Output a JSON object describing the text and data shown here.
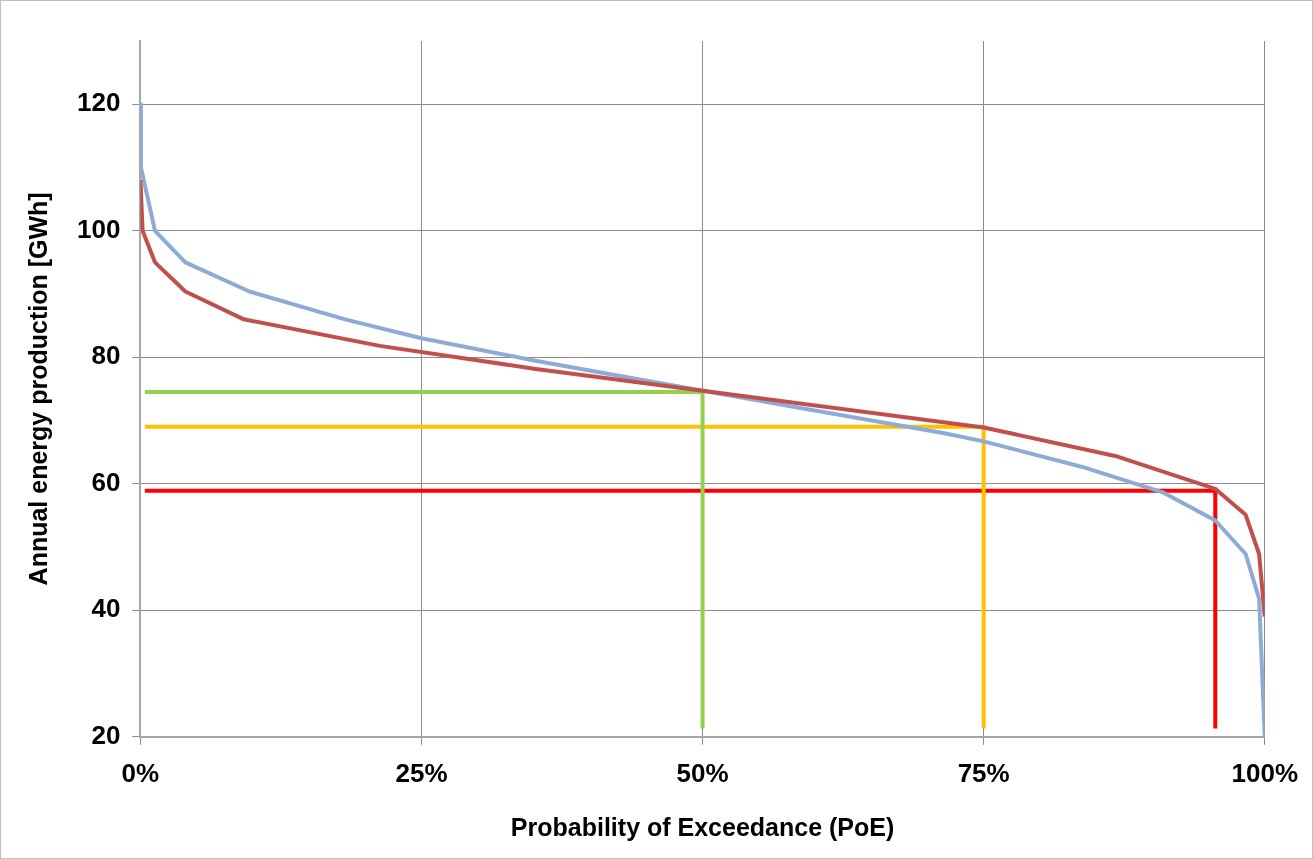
{
  "chart_data": {
    "type": "line",
    "xlabel": "Probability of Exceedance (PoE)",
    "ylabel": "Annual energy production [GWh]",
    "xlim": [
      0,
      100
    ],
    "xticks": [
      {
        "value": 0,
        "label": "0%"
      },
      {
        "value": 25,
        "label": "25%"
      },
      {
        "value": 50,
        "label": "50%"
      },
      {
        "value": 75,
        "label": "75%"
      },
      {
        "value": 100,
        "label": "100%"
      }
    ],
    "ylim": [
      20,
      130
    ],
    "yticks": [
      20,
      40,
      60,
      80,
      100,
      120
    ],
    "grid": true,
    "legend": false,
    "series": [
      {
        "color": "#c0504d",
        "x": [
          0,
          0.2,
          1.3,
          4,
          9.2,
          21.3,
          35,
          50,
          75,
          86.7,
          95.6,
          98.3,
          99.5,
          100
        ],
        "values": [
          108,
          100,
          95,
          90.4,
          86,
          81.8,
          78.2,
          74.7,
          68.9,
          64.4,
          59.2,
          55.1,
          48.9,
          39
        ]
      },
      {
        "color": "#8eaad6",
        "x": [
          0,
          0.05,
          1.3,
          4,
          9.7,
          18.2,
          25,
          35,
          50,
          71.5,
          75,
          83.7,
          91,
          95.6,
          98.3,
          99.5,
          100
        ],
        "values": [
          120,
          110,
          100,
          95,
          90.4,
          86,
          83,
          79.5,
          74.7,
          68,
          66.7,
          62.7,
          58.6,
          54.2,
          48.9,
          41.8,
          20
        ]
      },
      {
        "color": "#92d050",
        "x": [
          50,
          50,
          0.4
        ],
        "values": [
          21.3,
          74.5,
          74.5
        ]
      },
      {
        "color": "#ffc000",
        "x": [
          75,
          75,
          0.4
        ],
        "values": [
          21.3,
          69,
          69
        ]
      },
      {
        "color": "#ff0000",
        "x": [
          95.6,
          95.6,
          0.4
        ],
        "values": [
          21.3,
          58.9,
          58.9
        ]
      }
    ]
  }
}
